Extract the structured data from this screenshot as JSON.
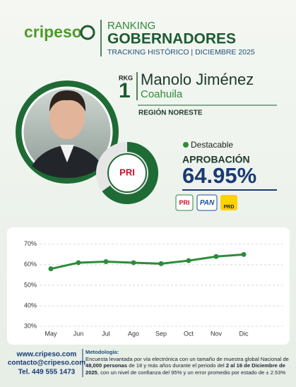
{
  "header": {
    "logo": "cripeso",
    "kicker": "RANKING",
    "title": "GOBERNADORES",
    "subtitle": "TRACKING HISTÓRICO | DICIEMBRE 2025"
  },
  "profile": {
    "rank_label": "RKG",
    "rank": "1",
    "name": "Manolo Jiménez",
    "state": "Coahuila",
    "region": "REGIÓN NORESTE",
    "status": "Destacable",
    "metric": "APROBACIÓN",
    "approval": {
      "value": 64.95,
      "label": "64.95%"
    },
    "parties": [
      "PRI",
      "PAN",
      "PRD"
    ]
  },
  "chart_data": {
    "type": "line",
    "categories": [
      "May",
      "Jun",
      "Jul",
      "Ago",
      "Sep",
      "Oct",
      "Nov",
      "Dic"
    ],
    "series": [
      {
        "name": "Aprobación",
        "color": "#2e8b3a",
        "values": [
          58,
          61,
          61.5,
          61,
          60.5,
          62,
          64,
          65
        ]
      }
    ],
    "ylim": [
      30,
      72
    ],
    "yticks": [
      {
        "value": 30,
        "label": "30%"
      },
      {
        "value": 40,
        "label": "40%"
      },
      {
        "value": 50,
        "label": "50%"
      },
      {
        "value": 60,
        "label": "60%"
      },
      {
        "value": 70,
        "label": "70%"
      }
    ],
    "grid": true
  },
  "footer": {
    "web": "www.cripeso.com",
    "email": "contacto@cripeso.com",
    "phone": "Tel. 449 555 1473",
    "methodology_title": "Metodología:",
    "methodology": [
      "Encuesta levantada por vía electrónica con un tamaño de muestra global Nacional de ",
      "48,000 personas",
      " de 18 y más años durante el periodo del ",
      "2 al 16 de Diciembre de 2025",
      ", con un nivel de confianza del 95% y un error promedio por estado de ± 2.53%"
    ]
  }
}
